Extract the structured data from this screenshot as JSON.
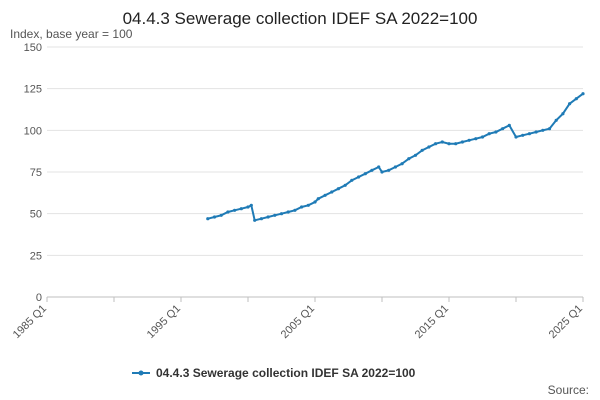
{
  "chart_data": {
    "type": "line",
    "title": "04.4.3 Sewerage collection IDEF SA 2022=100",
    "ylabel": "Index, base year = 100",
    "ylim": [
      0,
      150
    ],
    "yticks": [
      "0",
      "25",
      "50",
      "75",
      "100",
      "125",
      "150"
    ],
    "xlim": [
      "1985 Q1",
      "2025 Q1"
    ],
    "xticks": [
      "1985 Q1",
      "1995 Q1",
      "2005 Q1",
      "2015 Q1",
      "2025 Q1"
    ],
    "grid": "horizontal",
    "legend_position": "bottom",
    "source_label": "Source:",
    "series": [
      {
        "name": "04.4.3 Sewerage collection IDEF SA 2022=100",
        "color": "#1f7bb6",
        "points": [
          [
            "1997 Q1",
            47
          ],
          [
            "1997 Q3",
            48
          ],
          [
            "1998 Q1",
            49
          ],
          [
            "1998 Q3",
            51
          ],
          [
            "1999 Q1",
            52
          ],
          [
            "1999 Q3",
            53
          ],
          [
            "2000 Q1",
            54
          ],
          [
            "2000 Q2",
            55
          ],
          [
            "2000 Q3",
            46
          ],
          [
            "2001 Q1",
            47
          ],
          [
            "2001 Q3",
            48
          ],
          [
            "2002 Q1",
            49
          ],
          [
            "2002 Q3",
            50
          ],
          [
            "2003 Q1",
            51
          ],
          [
            "2003 Q3",
            52
          ],
          [
            "2004 Q1",
            54
          ],
          [
            "2004 Q3",
            55
          ],
          [
            "2005 Q1",
            57
          ],
          [
            "2005 Q2",
            59
          ],
          [
            "2005 Q4",
            61
          ],
          [
            "2006 Q2",
            63
          ],
          [
            "2006 Q4",
            65
          ],
          [
            "2007 Q2",
            67
          ],
          [
            "2007 Q4",
            70
          ],
          [
            "2008 Q2",
            72
          ],
          [
            "2008 Q4",
            74
          ],
          [
            "2009 Q2",
            76
          ],
          [
            "2009 Q4",
            78
          ],
          [
            "2010 Q1",
            75
          ],
          [
            "2010 Q3",
            76
          ],
          [
            "2011 Q1",
            78
          ],
          [
            "2011 Q3",
            80
          ],
          [
            "2012 Q1",
            83
          ],
          [
            "2012 Q3",
            85
          ],
          [
            "2013 Q1",
            88
          ],
          [
            "2013 Q3",
            90
          ],
          [
            "2014 Q1",
            92
          ],
          [
            "2014 Q3",
            93
          ],
          [
            "2015 Q1",
            92
          ],
          [
            "2015 Q3",
            92
          ],
          [
            "2016 Q1",
            93
          ],
          [
            "2016 Q3",
            94
          ],
          [
            "2017 Q1",
            95
          ],
          [
            "2017 Q3",
            96
          ],
          [
            "2018 Q1",
            98
          ],
          [
            "2018 Q3",
            99
          ],
          [
            "2019 Q1",
            101
          ],
          [
            "2019 Q3",
            103
          ],
          [
            "2020 Q1",
            96
          ],
          [
            "2020 Q3",
            97
          ],
          [
            "2021 Q1",
            98
          ],
          [
            "2021 Q3",
            99
          ],
          [
            "2022 Q1",
            100
          ],
          [
            "2022 Q3",
            101
          ],
          [
            "2023 Q1",
            106
          ],
          [
            "2023 Q3",
            110
          ],
          [
            "2024 Q1",
            116
          ],
          [
            "2024 Q3",
            119
          ],
          [
            "2025 Q1",
            122
          ]
        ]
      }
    ]
  }
}
